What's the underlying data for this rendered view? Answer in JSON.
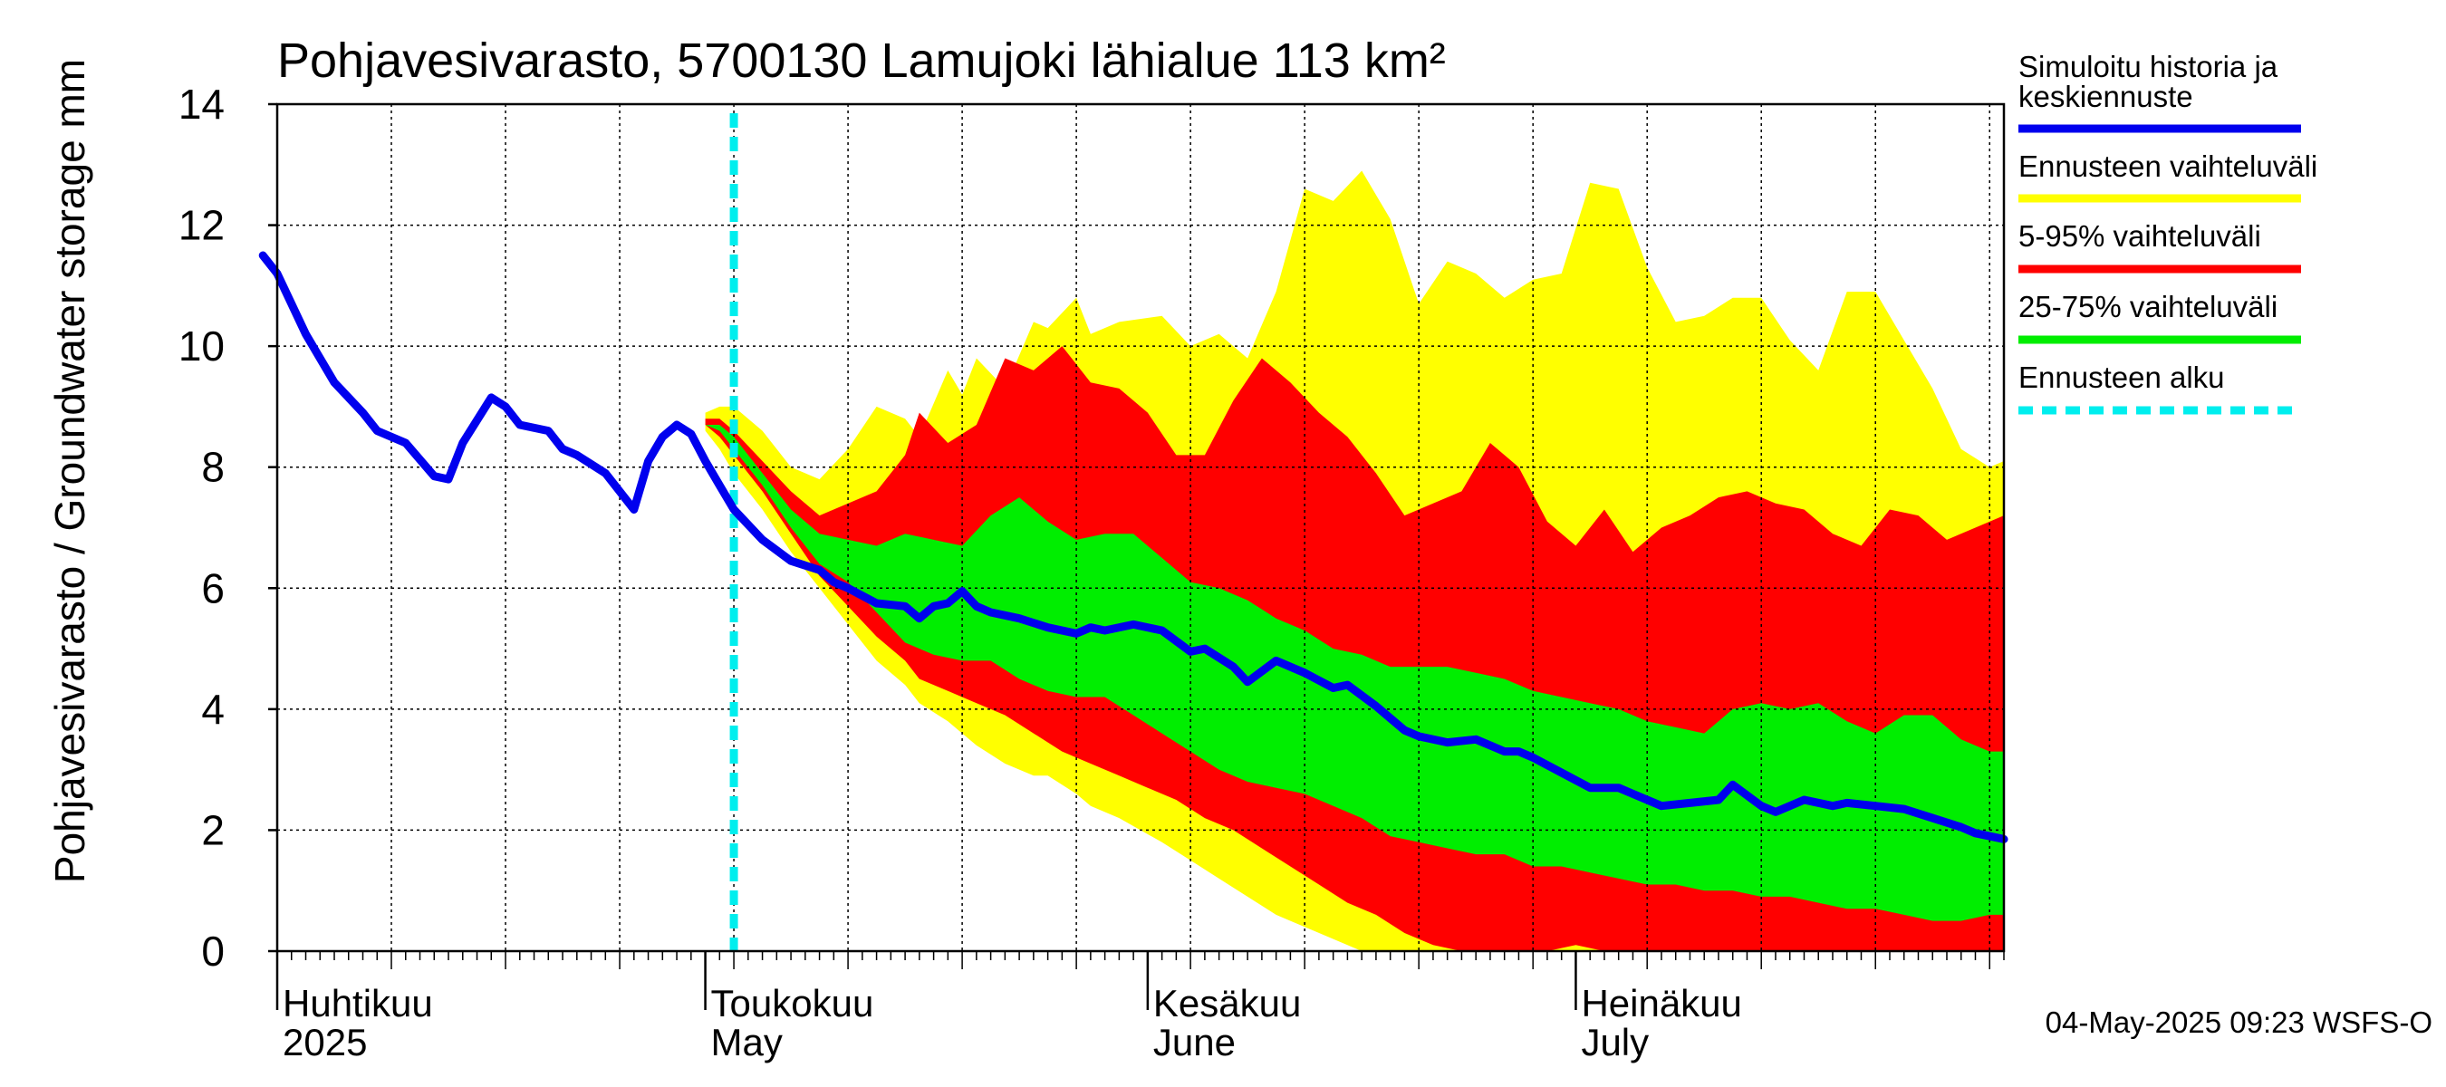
{
  "chart_data": {
    "type": "area",
    "title": "Pohjavesivarasto, 5700130 Lamujoki lähialue 113 km²",
    "ylabel": "Pohjavesivarasto / Groundwater storage   mm",
    "yunit": "mm",
    "ylim": [
      0,
      14
    ],
    "yticks": [
      0,
      2,
      4,
      6,
      8,
      10,
      12,
      14
    ],
    "xlim": [
      "2025-04-01",
      "2025-07-31"
    ],
    "grid": true,
    "legend_position": "right",
    "forecast_start": "2025-05-03",
    "month_labels": [
      {
        "fi": "Huhtikuu",
        "en": "2025",
        "date": "2025-04-01"
      },
      {
        "fi": "Toukokuu",
        "en": "May",
        "date": "2025-05-01"
      },
      {
        "fi": "Kesäkuu",
        "en": "June",
        "date": "2025-06-01"
      },
      {
        "fi": "Heinäkuu",
        "en": "July",
        "date": "2025-07-01"
      }
    ],
    "legend": [
      {
        "label": "Simuloitu historia ja keskiennuste",
        "line1": "Simuloitu historia ja",
        "line2": "keskiennuste",
        "color": "#0000ee",
        "style": "solid"
      },
      {
        "label": "Ennusteen vaihteluväli",
        "color": "#ffff00",
        "style": "solid"
      },
      {
        "label": "5-95% vaihteluväli",
        "color": "#ff0000",
        "style": "solid"
      },
      {
        "label": "25-75% vaihteluväli",
        "color": "#00ee00",
        "style": "solid"
      },
      {
        "label": "Ennusteen alku",
        "color": "#00eeee",
        "style": "dashed"
      }
    ],
    "timestamp": "04-May-2025 09:23 WSFS-O",
    "series": [
      {
        "name": "Simuloitu historia ja keskiennuste",
        "color": "#0000ee",
        "x": [
          "2025-03-31",
          "2025-04-01",
          "2025-04-03",
          "2025-04-05",
          "2025-04-07",
          "2025-04-08",
          "2025-04-10",
          "2025-04-12",
          "2025-04-13",
          "2025-04-14",
          "2025-04-16",
          "2025-04-17",
          "2025-04-18",
          "2025-04-20",
          "2025-04-21",
          "2025-04-22",
          "2025-04-24",
          "2025-04-25",
          "2025-04-26",
          "2025-04-27",
          "2025-04-28",
          "2025-04-29",
          "2025-04-30",
          "2025-05-01",
          "2025-05-02",
          "2025-05-03",
          "2025-05-05",
          "2025-05-07",
          "2025-05-09",
          "2025-05-10",
          "2025-05-11",
          "2025-05-13",
          "2025-05-15",
          "2025-05-16",
          "2025-05-17",
          "2025-05-18",
          "2025-05-19",
          "2025-05-20",
          "2025-05-21",
          "2025-05-23",
          "2025-05-25",
          "2025-05-27",
          "2025-05-28",
          "2025-05-29",
          "2025-05-31",
          "2025-06-02",
          "2025-06-04",
          "2025-06-05",
          "2025-06-07",
          "2025-06-08",
          "2025-06-10",
          "2025-06-12",
          "2025-06-14",
          "2025-06-15",
          "2025-06-17",
          "2025-06-19",
          "2025-06-20",
          "2025-06-22",
          "2025-06-24",
          "2025-06-26",
          "2025-06-27",
          "2025-06-28",
          "2025-06-30",
          "2025-07-02",
          "2025-07-04",
          "2025-07-05",
          "2025-07-07",
          "2025-07-09",
          "2025-07-11",
          "2025-07-12",
          "2025-07-14",
          "2025-07-15",
          "2025-07-17",
          "2025-07-19",
          "2025-07-20",
          "2025-07-22",
          "2025-07-24",
          "2025-07-26",
          "2025-07-28",
          "2025-07-29",
          "2025-07-31"
        ],
        "y": [
          11.5,
          11.2,
          10.2,
          9.4,
          8.9,
          8.6,
          8.4,
          7.85,
          7.8,
          8.4,
          9.15,
          9.0,
          8.7,
          8.6,
          8.3,
          8.2,
          7.9,
          7.6,
          7.3,
          8.1,
          8.5,
          8.7,
          8.55,
          8.1,
          7.7,
          7.3,
          6.8,
          6.45,
          6.3,
          6.1,
          6.0,
          5.75,
          5.7,
          5.5,
          5.7,
          5.75,
          5.95,
          5.7,
          5.6,
          5.5,
          5.35,
          5.25,
          5.35,
          5.3,
          5.4,
          5.3,
          4.95,
          5.0,
          4.7,
          4.45,
          4.8,
          4.6,
          4.35,
          4.4,
          4.05,
          3.65,
          3.55,
          3.45,
          3.5,
          3.3,
          3.3,
          3.2,
          2.95,
          2.7,
          2.7,
          2.6,
          2.4,
          2.45,
          2.5,
          2.75,
          2.4,
          2.3,
          2.5,
          2.4,
          2.45,
          2.4,
          2.35,
          2.2,
          2.05,
          1.95,
          1.85
        ]
      },
      {
        "name": "Ennusteen vaihteluväli",
        "color": "#ffff00",
        "x": [
          "2025-05-01",
          "2025-05-02",
          "2025-05-03",
          "2025-05-05",
          "2025-05-07",
          "2025-05-09",
          "2025-05-11",
          "2025-05-13",
          "2025-05-15",
          "2025-05-16",
          "2025-05-18",
          "2025-05-19",
          "2025-05-20",
          "2025-05-22",
          "2025-05-24",
          "2025-05-25",
          "2025-05-27",
          "2025-05-28",
          "2025-05-30",
          "2025-06-02",
          "2025-06-04",
          "2025-06-06",
          "2025-06-08",
          "2025-06-10",
          "2025-06-12",
          "2025-06-14",
          "2025-06-16",
          "2025-06-18",
          "2025-06-20",
          "2025-06-22",
          "2025-06-24",
          "2025-06-26",
          "2025-06-28",
          "2025-06-30",
          "2025-07-02",
          "2025-07-04",
          "2025-07-06",
          "2025-07-08",
          "2025-07-10",
          "2025-07-12",
          "2025-07-14",
          "2025-07-16",
          "2025-07-18",
          "2025-07-20",
          "2025-07-22",
          "2025-07-24",
          "2025-07-26",
          "2025-07-28",
          "2025-07-30",
          "2025-07-31"
        ],
        "y_high": [
          8.9,
          9.0,
          9.0,
          8.6,
          8.0,
          7.8,
          8.3,
          9.0,
          8.8,
          8.5,
          9.6,
          9.2,
          9.8,
          9.3,
          10.4,
          10.3,
          10.8,
          10.2,
          10.4,
          10.5,
          10.0,
          10.2,
          9.8,
          10.9,
          12.6,
          12.4,
          12.9,
          12.1,
          10.7,
          11.4,
          11.2,
          10.8,
          11.1,
          11.2,
          12.7,
          12.6,
          11.3,
          10.4,
          10.5,
          10.8,
          10.8,
          10.1,
          9.6,
          10.9,
          10.9,
          10.1,
          9.3,
          8.3,
          8.0,
          8.1
        ],
        "y_low": [
          8.6,
          8.3,
          7.9,
          7.3,
          6.6,
          6.0,
          5.4,
          4.8,
          4.4,
          4.1,
          3.8,
          3.6,
          3.4,
          3.1,
          2.9,
          2.9,
          2.6,
          2.4,
          2.2,
          1.8,
          1.5,
          1.2,
          0.9,
          0.6,
          0.4,
          0.2,
          0.0,
          0.0,
          0.0,
          0.0,
          0.0,
          0.0,
          0.0,
          0.0,
          0.0,
          0.0,
          0.0,
          0.0,
          0.0,
          0.0,
          0.0,
          0.0,
          0.0,
          0.0,
          0.0,
          0.0,
          0.0,
          0.0,
          0.0,
          0.0
        ]
      },
      {
        "name": "5-95% vaihteluväli",
        "color": "#ff0000",
        "x": [
          "2025-05-01",
          "2025-05-02",
          "2025-05-03",
          "2025-05-05",
          "2025-05-07",
          "2025-05-09",
          "2025-05-11",
          "2025-05-13",
          "2025-05-15",
          "2025-05-16",
          "2025-05-18",
          "2025-05-20",
          "2025-05-22",
          "2025-05-24",
          "2025-05-26",
          "2025-05-28",
          "2025-05-30",
          "2025-06-01",
          "2025-06-03",
          "2025-06-05",
          "2025-06-07",
          "2025-06-09",
          "2025-06-11",
          "2025-06-13",
          "2025-06-15",
          "2025-06-17",
          "2025-06-19",
          "2025-06-21",
          "2025-06-23",
          "2025-06-25",
          "2025-06-27",
          "2025-06-29",
          "2025-07-01",
          "2025-07-03",
          "2025-07-05",
          "2025-07-07",
          "2025-07-09",
          "2025-07-11",
          "2025-07-13",
          "2025-07-15",
          "2025-07-17",
          "2025-07-19",
          "2025-07-21",
          "2025-07-23",
          "2025-07-25",
          "2025-07-27",
          "2025-07-29",
          "2025-07-31"
        ],
        "y_high": [
          8.8,
          8.8,
          8.6,
          8.1,
          7.6,
          7.2,
          7.4,
          7.6,
          8.2,
          8.9,
          8.4,
          8.7,
          9.8,
          9.6,
          10.0,
          9.4,
          9.3,
          8.9,
          8.2,
          8.2,
          9.1,
          9.8,
          9.4,
          8.9,
          8.5,
          7.9,
          7.2,
          7.4,
          7.6,
          8.4,
          8.0,
          7.1,
          6.7,
          7.3,
          6.6,
          7.0,
          7.2,
          7.5,
          7.6,
          7.4,
          7.3,
          6.9,
          6.7,
          7.3,
          7.2,
          6.8,
          7.0,
          7.2
        ],
        "y_low": [
          8.7,
          8.5,
          8.2,
          7.6,
          6.9,
          6.2,
          5.7,
          5.2,
          4.8,
          4.5,
          4.3,
          4.1,
          3.9,
          3.6,
          3.3,
          3.1,
          2.9,
          2.7,
          2.5,
          2.2,
          2.0,
          1.7,
          1.4,
          1.1,
          0.8,
          0.6,
          0.3,
          0.1,
          0.0,
          0.0,
          0.0,
          0.0,
          0.1,
          0.0,
          0.0,
          0.0,
          0.0,
          0.0,
          0.0,
          0.0,
          0.0,
          0.0,
          0.0,
          0.0,
          0.0,
          0.0,
          0.0,
          0.0
        ]
      },
      {
        "name": "25-75% vaihteluväli",
        "color": "#00ee00",
        "x": [
          "2025-05-01",
          "2025-05-02",
          "2025-05-03",
          "2025-05-05",
          "2025-05-07",
          "2025-05-09",
          "2025-05-11",
          "2025-05-13",
          "2025-05-15",
          "2025-05-17",
          "2025-05-19",
          "2025-05-21",
          "2025-05-23",
          "2025-05-25",
          "2025-05-27",
          "2025-05-29",
          "2025-05-31",
          "2025-06-02",
          "2025-06-04",
          "2025-06-06",
          "2025-06-08",
          "2025-06-10",
          "2025-06-12",
          "2025-06-14",
          "2025-06-16",
          "2025-06-18",
          "2025-06-20",
          "2025-06-22",
          "2025-06-24",
          "2025-06-26",
          "2025-06-28",
          "2025-06-30",
          "2025-07-02",
          "2025-07-04",
          "2025-07-06",
          "2025-07-08",
          "2025-07-10",
          "2025-07-12",
          "2025-07-14",
          "2025-07-16",
          "2025-07-18",
          "2025-07-20",
          "2025-07-22",
          "2025-07-24",
          "2025-07-26",
          "2025-07-28",
          "2025-07-30",
          "2025-07-31"
        ],
        "y_high": [
          8.7,
          8.7,
          8.5,
          7.9,
          7.3,
          6.9,
          6.8,
          6.7,
          6.9,
          6.8,
          6.7,
          7.2,
          7.5,
          7.1,
          6.8,
          6.9,
          6.9,
          6.5,
          6.1,
          6.0,
          5.8,
          5.5,
          5.3,
          5.0,
          4.9,
          4.7,
          4.7,
          4.7,
          4.6,
          4.5,
          4.3,
          4.2,
          4.1,
          4.0,
          3.8,
          3.7,
          3.6,
          4.0,
          4.1,
          4.0,
          4.1,
          3.8,
          3.6,
          3.9,
          3.9,
          3.5,
          3.3,
          3.3
        ],
        "y_low": [
          8.7,
          8.6,
          8.3,
          7.7,
          7.0,
          6.4,
          6.1,
          5.6,
          5.1,
          4.9,
          4.8,
          4.8,
          4.5,
          4.3,
          4.2,
          4.2,
          3.9,
          3.6,
          3.3,
          3.0,
          2.8,
          2.7,
          2.6,
          2.4,
          2.2,
          1.9,
          1.8,
          1.7,
          1.6,
          1.6,
          1.4,
          1.4,
          1.3,
          1.2,
          1.1,
          1.1,
          1.0,
          1.0,
          0.9,
          0.9,
          0.8,
          0.7,
          0.7,
          0.6,
          0.5,
          0.5,
          0.6,
          0.6
        ]
      }
    ]
  }
}
